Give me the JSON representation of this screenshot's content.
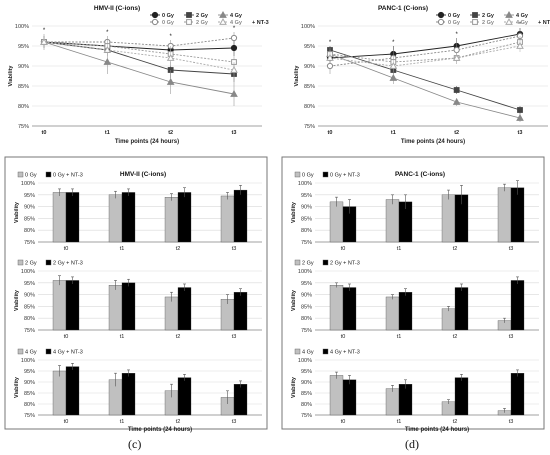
{
  "panel_letters": [
    "(c)",
    "(d)"
  ],
  "chart_data": [
    {
      "id": "line-hmv",
      "type": "line",
      "title": "HMV-II (C-ions)",
      "xlabel": "Time points (24 hours)",
      "ylabel": "Viability",
      "categories": [
        "t0",
        "t1",
        "t2",
        "t3"
      ],
      "ylim": [
        75,
        100
      ],
      "yticks": [
        "75%",
        "80%",
        "85%",
        "90%",
        "95%",
        "100%"
      ],
      "legend_position": "top",
      "series": [
        {
          "name": "0 Gy",
          "values": [
            96,
            95,
            94,
            94.5
          ],
          "color": "#222222",
          "marker": "circle",
          "dash": false,
          "filled": true,
          "err": [
            1.5,
            1.5,
            1.5,
            2
          ]
        },
        {
          "name": "2 Gy",
          "values": [
            96,
            94,
            89,
            88
          ],
          "color": "#444444",
          "marker": "square",
          "dash": false,
          "filled": true,
          "err": [
            1.5,
            1.5,
            2,
            2
          ]
        },
        {
          "name": "4 Gy",
          "values": [
            96,
            91,
            86,
            83
          ],
          "color": "#888888",
          "marker": "triangle",
          "dash": false,
          "filled": true,
          "err": [
            2,
            3,
            3,
            3
          ]
        },
        {
          "name": "0 Gy",
          "values": [
            96,
            96,
            95,
            97
          ],
          "color": "#888888",
          "marker": "circle",
          "dash": true,
          "filled": false,
          "err": [
            1.5,
            1.5,
            1.5,
            1.5
          ]
        },
        {
          "name": "2 Gy",
          "values": [
            96,
            95,
            93,
            91
          ],
          "color": "#999999",
          "marker": "square",
          "dash": true,
          "filled": false,
          "err": [
            1.5,
            1.5,
            2,
            2
          ]
        },
        {
          "name": "4 Gy",
          "values": [
            96,
            94,
            92,
            89
          ],
          "color": "#aaaaaa",
          "marker": "triangle",
          "dash": true,
          "filled": false,
          "err": [
            1.5,
            1.5,
            2,
            2
          ]
        }
      ],
      "legend_extra": "+ NT-3",
      "annotations": [
        "*",
        "*",
        "*",
        "*"
      ]
    },
    {
      "id": "line-panc",
      "type": "line",
      "title": "PANC-1 (C-ions)",
      "xlabel": "Time points (24 hours)",
      "ylabel": "Viability",
      "categories": [
        "t0",
        "t1",
        "t2",
        "t3"
      ],
      "ylim": [
        75,
        100
      ],
      "yticks": [
        "75%",
        "80%",
        "85%",
        "90%",
        "95%",
        "100%"
      ],
      "legend_position": "top",
      "series": [
        {
          "name": "0 Gy",
          "values": [
            92,
            93,
            95,
            98
          ],
          "color": "#222222",
          "marker": "circle",
          "dash": false,
          "filled": true,
          "err": [
            2,
            2,
            2,
            1.5
          ]
        },
        {
          "name": "2 Gy",
          "values": [
            94,
            89,
            84,
            79
          ],
          "color": "#444444",
          "marker": "square",
          "dash": false,
          "filled": true,
          "err": [
            1,
            1,
            1,
            1
          ]
        },
        {
          "name": "4 Gy",
          "values": [
            93,
            87,
            81,
            77
          ],
          "color": "#888888",
          "marker": "triangle",
          "dash": false,
          "filled": true,
          "err": [
            1,
            1.5,
            1,
            1
          ]
        },
        {
          "name": "0 Gy",
          "values": [
            90,
            92,
            94,
            97.5
          ],
          "color": "#888888",
          "marker": "circle",
          "dash": true,
          "filled": false,
          "err": [
            2,
            2,
            3,
            2
          ]
        },
        {
          "name": "2 Gy",
          "values": [
            93,
            91,
            92,
            96
          ],
          "color": "#999999",
          "marker": "square",
          "dash": true,
          "filled": false,
          "err": [
            1.5,
            1.5,
            1.5,
            1.5
          ]
        },
        {
          "name": "4 Gy",
          "values": [
            92,
            90,
            92,
            95
          ],
          "color": "#aaaaaa",
          "marker": "triangle",
          "dash": true,
          "filled": false,
          "err": [
            1.5,
            1.5,
            1.5,
            1.5
          ]
        }
      ],
      "legend_extra": "+ NT-3",
      "annotations": [
        "*",
        "*",
        "*",
        "*"
      ]
    },
    {
      "id": "bar-hmv-0",
      "type": "bar",
      "title": "HMV-II (C-ions)",
      "xlabel": "",
      "ylabel": "Viability",
      "categories": [
        "t0",
        "t1",
        "t2",
        "t3"
      ],
      "ylim": [
        75,
        100
      ],
      "yticks": [
        "75%",
        "80%",
        "85%",
        "90%",
        "95%",
        "100%"
      ],
      "legend_position": "top-left",
      "series": [
        {
          "name": "0 Gy",
          "values": [
            96,
            95,
            94,
            94.5
          ],
          "color": "#c0c0c0",
          "err": [
            1.5,
            1.5,
            1.5,
            1.5
          ]
        },
        {
          "name": "0 Gy + NT-3",
          "values": [
            96,
            96,
            96,
            97
          ],
          "color": "#000000",
          "err": [
            1.5,
            1.5,
            2,
            2
          ]
        }
      ]
    },
    {
      "id": "bar-hmv-2",
      "type": "bar",
      "title": "",
      "xlabel": "",
      "ylabel": "Viability",
      "categories": [
        "t0",
        "t1",
        "t2",
        "t3"
      ],
      "ylim": [
        75,
        100
      ],
      "yticks": [
        "75%",
        "80%",
        "85%",
        "90%",
        "95%",
        "100%"
      ],
      "legend_position": "top-left",
      "series": [
        {
          "name": "2 Gy",
          "values": [
            96,
            94,
            89,
            88
          ],
          "color": "#c0c0c0",
          "err": [
            2,
            2,
            2,
            2
          ]
        },
        {
          "name": "2 Gy + NT-3",
          "values": [
            96,
            95,
            93,
            91
          ],
          "color": "#000000",
          "err": [
            1.5,
            1.5,
            1.5,
            1.5
          ]
        }
      ]
    },
    {
      "id": "bar-hmv-4",
      "type": "bar",
      "title": "",
      "xlabel": "Time points (24 hours)",
      "ylabel": "Viability",
      "categories": [
        "t0",
        "t1",
        "t2",
        "t3"
      ],
      "ylim": [
        75,
        100
      ],
      "yticks": [
        "75%",
        "80%",
        "85%",
        "90%",
        "95%",
        "100%"
      ],
      "legend_position": "top-left",
      "series": [
        {
          "name": "4 Gy",
          "values": [
            95,
            91,
            86,
            83
          ],
          "color": "#c0c0c0",
          "err": [
            2.5,
            3,
            3,
            3
          ]
        },
        {
          "name": "4 Gy + NT-3",
          "values": [
            97,
            94,
            92,
            89
          ],
          "color": "#000000",
          "err": [
            1.5,
            1.5,
            1.5,
            1.5
          ]
        }
      ]
    },
    {
      "id": "bar-panc-0",
      "type": "bar",
      "title": "PANC-1 (C-ions)",
      "xlabel": "",
      "ylabel": "Viability",
      "categories": [
        "t0",
        "t1",
        "t2",
        "t3"
      ],
      "ylim": [
        75,
        100
      ],
      "yticks": [
        "75%",
        "80%",
        "85%",
        "90%",
        "95%",
        "100%"
      ],
      "legend_position": "top-left",
      "series": [
        {
          "name": "0 Gy",
          "values": [
            92,
            93,
            95,
            98
          ],
          "color": "#c0c0c0",
          "err": [
            2,
            2,
            2,
            1.5
          ]
        },
        {
          "name": "0 Gy + NT-3",
          "values": [
            90,
            92,
            95,
            98
          ],
          "color": "#000000",
          "err": [
            3,
            3,
            4,
            3
          ]
        }
      ]
    },
    {
      "id": "bar-panc-2",
      "type": "bar",
      "title": "",
      "xlabel": "",
      "ylabel": "Viability",
      "categories": [
        "t0",
        "t1",
        "t2",
        "t3"
      ],
      "ylim": [
        75,
        100
      ],
      "yticks": [
        "75%",
        "80%",
        "85%",
        "90%",
        "95%",
        "100%"
      ],
      "legend_position": "top-left",
      "series": [
        {
          "name": "2 Gy",
          "values": [
            94,
            89,
            84,
            79
          ],
          "color": "#c0c0c0",
          "err": [
            1,
            1,
            1,
            1
          ]
        },
        {
          "name": "2 Gy + NT-3",
          "values": [
            93,
            91,
            93,
            96
          ],
          "color": "#000000",
          "err": [
            1.5,
            1.5,
            1.5,
            1.5
          ]
        }
      ]
    },
    {
      "id": "bar-panc-4",
      "type": "bar",
      "title": "",
      "xlabel": "Time points (24 hours)",
      "ylabel": "Viability",
      "categories": [
        "t0",
        "t1",
        "t2",
        "t3"
      ],
      "ylim": [
        75,
        100
      ],
      "yticks": [
        "75%",
        "80%",
        "85%",
        "90%",
        "95%",
        "100%"
      ],
      "legend_position": "top-left",
      "series": [
        {
          "name": "4 Gy",
          "values": [
            93,
            87,
            81,
            77
          ],
          "color": "#c0c0c0",
          "err": [
            1.5,
            1.5,
            1,
            1
          ]
        },
        {
          "name": "4 Gy + NT-3",
          "values": [
            91,
            89,
            92,
            94
          ],
          "color": "#000000",
          "err": [
            2,
            2,
            1.5,
            1.5
          ]
        }
      ]
    }
  ]
}
